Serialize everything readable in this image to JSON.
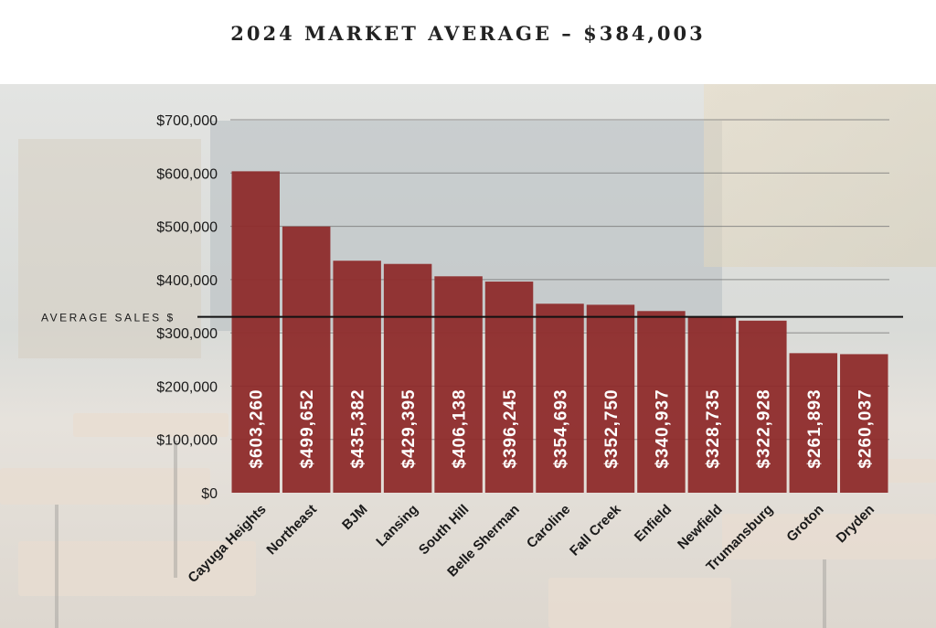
{
  "header": {
    "title": "2024 MARKET AVERAGE – $384,003"
  },
  "chart_data": {
    "type": "bar",
    "title": "2024 MARKET AVERAGE – $384,003",
    "categories": [
      "Cayuga Heights",
      "Northeast",
      "BJM",
      "Lansing",
      "South Hill",
      "Belle Sherman",
      "Caroline",
      "Fall Creek",
      "Enfield",
      "Newfield",
      "Trumansburg",
      "Groton",
      "Dryden"
    ],
    "values": [
      603260,
      499652,
      435382,
      429395,
      406138,
      396245,
      354693,
      352750,
      340937,
      328735,
      322928,
      261893,
      260037
    ],
    "value_labels": [
      "$603,260",
      "$499,652",
      "$435,382",
      "$429,395",
      "$406,138",
      "$396,245",
      "$354,693",
      "$352,750",
      "$340,937",
      "$328,735",
      "$322,928",
      "$261,893",
      "$260,037"
    ],
    "y_ticks": [
      0,
      100000,
      200000,
      300000,
      400000,
      500000,
      600000,
      700000
    ],
    "y_tick_labels": [
      "$0",
      "$100,000",
      "$200,000",
      "$300,000",
      "$400,000",
      "$500,000",
      "$600,000",
      "$700,000"
    ],
    "ylim": [
      0,
      700000
    ],
    "grid": true,
    "reference_line": {
      "label": "AVERAGE SALES $",
      "value": 330000
    },
    "colors": {
      "bar": "#8e2b2b",
      "bar_label": "#ffffff",
      "grid": "#777777",
      "reference_line": "#111111",
      "text": "#1a1a1a"
    }
  }
}
